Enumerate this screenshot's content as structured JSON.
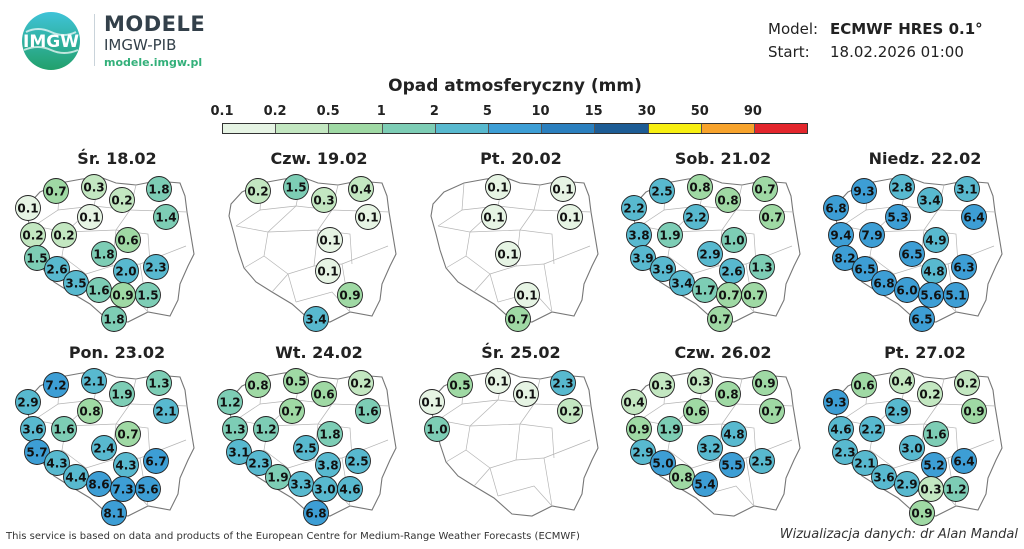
{
  "header": {
    "logo_mark": "IMGW",
    "logo_title": "MODELE",
    "logo_subtitle": "IMGW-PIB",
    "logo_url": "modele.imgw.pl",
    "model_label": "Model:",
    "model_value": "ECMWF HRES 0.1°",
    "start_label": "Start:",
    "start_value": "18.02.2026 01:00"
  },
  "legend": {
    "title": "Opad atmosferyczny (mm)",
    "ticks": [
      "0.1",
      "0.2",
      "0.5",
      "1",
      "2",
      "5",
      "10",
      "15",
      "30",
      "50",
      "90"
    ],
    "colors": [
      "#e6f4e4",
      "#c3e7c1",
      "#9fd9a4",
      "#7dcdb5",
      "#58b9cf",
      "#3d9ed5",
      "#2a7fbe",
      "#1d5c95",
      "#f7ef11",
      "#f7a32c",
      "#e3262c"
    ]
  },
  "maps": [
    {
      "title": "Śr. 18.02",
      "stations": [
        {
          "id": "koszalin",
          "v": "0.7"
        },
        {
          "id": "leba",
          "v": "0.3"
        },
        {
          "id": "elblag",
          "v": "0.2"
        },
        {
          "id": "suwalki",
          "v": "1.8"
        },
        {
          "id": "szczecin",
          "v": "0.1"
        },
        {
          "id": "bydgoszcz",
          "v": "0.1"
        },
        {
          "id": "bialystok",
          "v": "1.4"
        },
        {
          "id": "gorzow",
          "v": "0.2"
        },
        {
          "id": "poznan",
          "v": "0.2"
        },
        {
          "id": "warszawa",
          "v": "0.6"
        },
        {
          "id": "zielona",
          "v": "1.5"
        },
        {
          "id": "lodz",
          "v": "1.8"
        },
        {
          "id": "lublin",
          "v": "2.3"
        },
        {
          "id": "wroclaw",
          "v": "2.6"
        },
        {
          "id": "kielce",
          "v": "2.0"
        },
        {
          "id": "opole",
          "v": "3.5"
        },
        {
          "id": "katowice",
          "v": "1.6"
        },
        {
          "id": "krakow",
          "v": "0.9"
        },
        {
          "id": "rzeszow",
          "v": "1.5"
        },
        {
          "id": "zakopane",
          "v": "1.8"
        }
      ]
    },
    {
      "title": "Czw. 19.02",
      "stations": [
        {
          "id": "koszalin",
          "v": "0.2"
        },
        {
          "id": "leba",
          "v": "1.5"
        },
        {
          "id": "elblag",
          "v": "0.3"
        },
        {
          "id": "suwalki",
          "v": "0.4"
        },
        {
          "id": "bialystok",
          "v": "0.1"
        },
        {
          "id": "warszawa",
          "v": "0.1"
        },
        {
          "id": "kielce",
          "v": "0.1"
        },
        {
          "id": "rzeszow",
          "v": "0.9"
        },
        {
          "id": "zakopane",
          "v": "3.4"
        }
      ]
    },
    {
      "title": "Pt. 20.02",
      "stations": [
        {
          "id": "leba",
          "v": "0.1"
        },
        {
          "id": "suwalki",
          "v": "0.1"
        },
        {
          "id": "bydgoszcz",
          "v": "0.1"
        },
        {
          "id": "bialystok",
          "v": "0.1"
        },
        {
          "id": "lodz",
          "v": "0.1"
        },
        {
          "id": "krakow",
          "v": "0.1"
        },
        {
          "id": "zakopane",
          "v": "0.7"
        }
      ]
    },
    {
      "title": "Sob. 21.02",
      "stations": [
        {
          "id": "koszalin",
          "v": "2.5"
        },
        {
          "id": "leba",
          "v": "0.8"
        },
        {
          "id": "elblag",
          "v": "0.8"
        },
        {
          "id": "suwalki",
          "v": "0.7"
        },
        {
          "id": "szczecin",
          "v": "2.2"
        },
        {
          "id": "bydgoszcz",
          "v": "2.2"
        },
        {
          "id": "bialystok",
          "v": "0.7"
        },
        {
          "id": "gorzow",
          "v": "3.8"
        },
        {
          "id": "poznan",
          "v": "1.9"
        },
        {
          "id": "warszawa",
          "v": "1.0"
        },
        {
          "id": "zielona",
          "v": "3.9"
        },
        {
          "id": "lodz",
          "v": "2.9"
        },
        {
          "id": "lublin",
          "v": "1.3"
        },
        {
          "id": "wroclaw",
          "v": "3.9"
        },
        {
          "id": "kielce",
          "v": "2.6"
        },
        {
          "id": "opole",
          "v": "3.4"
        },
        {
          "id": "katowice",
          "v": "1.7"
        },
        {
          "id": "krakow",
          "v": "0.7"
        },
        {
          "id": "rzeszow",
          "v": "0.7"
        },
        {
          "id": "zakopane",
          "v": "0.7"
        }
      ]
    },
    {
      "title": "Niedz. 22.02",
      "stations": [
        {
          "id": "koszalin",
          "v": "9.3"
        },
        {
          "id": "leba",
          "v": "2.8"
        },
        {
          "id": "elblag",
          "v": "3.4"
        },
        {
          "id": "suwalki",
          "v": "3.1"
        },
        {
          "id": "szczecin",
          "v": "6.8"
        },
        {
          "id": "bydgoszcz",
          "v": "5.3"
        },
        {
          "id": "bialystok",
          "v": "6.4"
        },
        {
          "id": "gorzow",
          "v": "9.4"
        },
        {
          "id": "poznan",
          "v": "7.9"
        },
        {
          "id": "warszawa",
          "v": "4.9"
        },
        {
          "id": "zielona",
          "v": "8.2"
        },
        {
          "id": "lodz",
          "v": "6.5"
        },
        {
          "id": "lublin",
          "v": "6.3"
        },
        {
          "id": "wroclaw",
          "v": "6.5"
        },
        {
          "id": "kielce",
          "v": "4.8"
        },
        {
          "id": "opole",
          "v": "6.8"
        },
        {
          "id": "katowice",
          "v": "6.0"
        },
        {
          "id": "krakow",
          "v": "5.6"
        },
        {
          "id": "rzeszow",
          "v": "5.1"
        },
        {
          "id": "zakopane",
          "v": "6.5"
        }
      ]
    },
    {
      "title": "Pon. 23.02",
      "stations": [
        {
          "id": "koszalin",
          "v": "7.2"
        },
        {
          "id": "leba",
          "v": "2.1"
        },
        {
          "id": "elblag",
          "v": "1.9"
        },
        {
          "id": "suwalki",
          "v": "1.3"
        },
        {
          "id": "szczecin",
          "v": "2.9"
        },
        {
          "id": "bydgoszcz",
          "v": "0.8"
        },
        {
          "id": "bialystok",
          "v": "2.1"
        },
        {
          "id": "gorzow",
          "v": "3.6"
        },
        {
          "id": "poznan",
          "v": "1.6"
        },
        {
          "id": "warszawa",
          "v": "0.7"
        },
        {
          "id": "zielona",
          "v": "5.7"
        },
        {
          "id": "lodz",
          "v": "2.4"
        },
        {
          "id": "lublin",
          "v": "6.7"
        },
        {
          "id": "wroclaw",
          "v": "4.3"
        },
        {
          "id": "kielce",
          "v": "4.3"
        },
        {
          "id": "opole",
          "v": "4.4"
        },
        {
          "id": "katowice",
          "v": "8.6"
        },
        {
          "id": "krakow",
          "v": "7.3"
        },
        {
          "id": "rzeszow",
          "v": "5.6"
        },
        {
          "id": "zakopane",
          "v": "8.1"
        }
      ]
    },
    {
      "title": "Wt. 24.02",
      "stations": [
        {
          "id": "koszalin",
          "v": "0.8"
        },
        {
          "id": "leba",
          "v": "0.5"
        },
        {
          "id": "elblag",
          "v": "0.6"
        },
        {
          "id": "suwalki",
          "v": "0.2"
        },
        {
          "id": "szczecin",
          "v": "1.2"
        },
        {
          "id": "bydgoszcz",
          "v": "0.7"
        },
        {
          "id": "bialystok",
          "v": "1.6"
        },
        {
          "id": "gorzow",
          "v": "1.3"
        },
        {
          "id": "poznan",
          "v": "1.2"
        },
        {
          "id": "warszawa",
          "v": "1.8"
        },
        {
          "id": "zielona",
          "v": "3.1"
        },
        {
          "id": "lodz",
          "v": "2.5"
        },
        {
          "id": "lublin",
          "v": "2.5"
        },
        {
          "id": "wroclaw",
          "v": "2.3"
        },
        {
          "id": "kielce",
          "v": "3.8"
        },
        {
          "id": "opole",
          "v": "1.9"
        },
        {
          "id": "katowice",
          "v": "3.3"
        },
        {
          "id": "krakow",
          "v": "3.0"
        },
        {
          "id": "rzeszow",
          "v": "4.6"
        },
        {
          "id": "zakopane",
          "v": "6.8"
        }
      ]
    },
    {
      "title": "Śr. 25.02",
      "stations": [
        {
          "id": "koszalin",
          "v": "0.5"
        },
        {
          "id": "leba",
          "v": "0.1"
        },
        {
          "id": "elblag",
          "v": "0.1"
        },
        {
          "id": "suwalki",
          "v": "2.3"
        },
        {
          "id": "szczecin",
          "v": "0.1"
        },
        {
          "id": "bialystok",
          "v": "0.2"
        },
        {
          "id": "gorzow",
          "v": "1.0"
        }
      ]
    },
    {
      "title": "Czw. 26.02",
      "stations": [
        {
          "id": "koszalin",
          "v": "0.3"
        },
        {
          "id": "leba",
          "v": "0.3"
        },
        {
          "id": "elblag",
          "v": "0.8"
        },
        {
          "id": "suwalki",
          "v": "0.9"
        },
        {
          "id": "szczecin",
          "v": "0.4"
        },
        {
          "id": "bydgoszcz",
          "v": "0.6"
        },
        {
          "id": "bialystok",
          "v": "0.7"
        },
        {
          "id": "gorzow",
          "v": "0.9"
        },
        {
          "id": "poznan",
          "v": "1.9"
        },
        {
          "id": "warszawa",
          "v": "4.8"
        },
        {
          "id": "zielona",
          "v": "2.9"
        },
        {
          "id": "lodz",
          "v": "3.2"
        },
        {
          "id": "lublin",
          "v": "2.5"
        },
        {
          "id": "wroclaw",
          "v": "5.0"
        },
        {
          "id": "kielce",
          "v": "5.5"
        },
        {
          "id": "opole",
          "v": "0.8"
        },
        {
          "id": "katowice",
          "v": "5.4"
        }
      ]
    },
    {
      "title": "Pt. 27.02",
      "stations": [
        {
          "id": "koszalin",
          "v": "0.6"
        },
        {
          "id": "leba",
          "v": "0.4"
        },
        {
          "id": "elblag",
          "v": "0.2"
        },
        {
          "id": "suwalki",
          "v": "0.2"
        },
        {
          "id": "szczecin",
          "v": "9.3"
        },
        {
          "id": "bydgoszcz",
          "v": "2.9"
        },
        {
          "id": "bialystok",
          "v": "0.9"
        },
        {
          "id": "gorzow",
          "v": "4.6"
        },
        {
          "id": "poznan",
          "v": "2.2"
        },
        {
          "id": "warszawa",
          "v": "1.6"
        },
        {
          "id": "zielona",
          "v": "2.3"
        },
        {
          "id": "lodz",
          "v": "3.0"
        },
        {
          "id": "lublin",
          "v": "6.4"
        },
        {
          "id": "wroclaw",
          "v": "2.1"
        },
        {
          "id": "kielce",
          "v": "5.2"
        },
        {
          "id": "opole",
          "v": "3.6"
        },
        {
          "id": "katowice",
          "v": "2.9"
        },
        {
          "id": "krakow",
          "v": "0.3"
        },
        {
          "id": "rzeszow",
          "v": "1.2"
        },
        {
          "id": "zakopane",
          "v": "0.9"
        }
      ]
    }
  ],
  "footer": {
    "source": "This service is based on data and products of the European Centre for Medium-Range Weather Forecasts (ECMWF)",
    "credit": "Wizualizacja danych: dr Alan Mandal"
  }
}
